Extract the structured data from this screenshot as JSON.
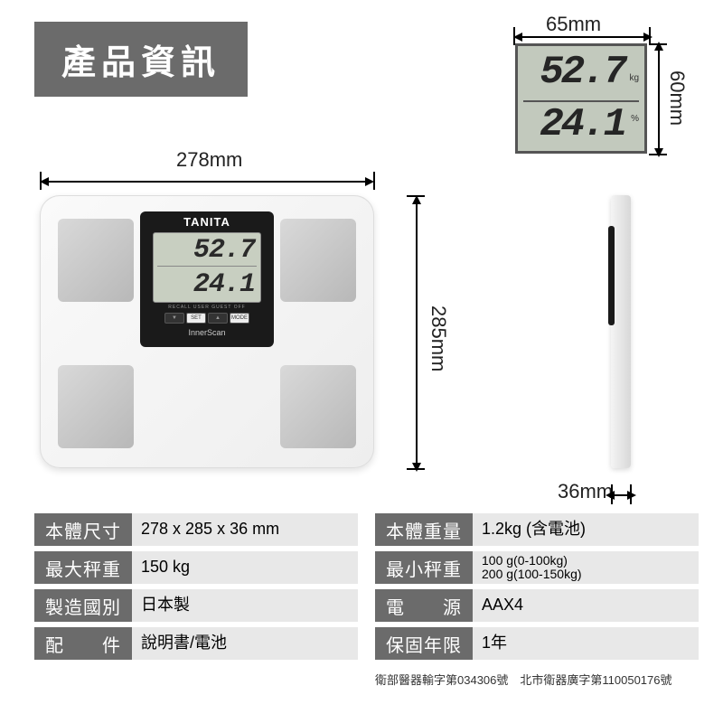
{
  "header": {
    "title": "產品資訊"
  },
  "dims": {
    "width": "278mm",
    "height": "285mm",
    "depth": "36mm",
    "lcd_w": "65mm",
    "lcd_h": "60mm"
  },
  "lcd": {
    "weight": "52.7",
    "weight_unit": "kg",
    "fat": "24.1",
    "fat_unit": "%"
  },
  "brand": "TANITA",
  "innerscan": "InnerScan",
  "specs_left": [
    {
      "label": "本體尺寸",
      "value": "278 x 285 x 36 mm"
    },
    {
      "label": "最大秤重",
      "value": "150 kg"
    },
    {
      "label": "製造國別",
      "value": "日本製"
    },
    {
      "label": "配　　件",
      "value": "說明書/電池"
    }
  ],
  "specs_right": [
    {
      "label": "本體重量",
      "value": "1.2kg (含電池)"
    },
    {
      "label": "最小秤重",
      "value": "100 g(0-100kg)\n200 g(100-150kg)"
    },
    {
      "label": "電　　源",
      "value": "AAX4"
    },
    {
      "label": "保固年限",
      "value": "1年"
    }
  ],
  "footnote": "衛部醫器輸字第034306號　北市衛器廣字第110050176號",
  "colors": {
    "gray": "#6b6b6b",
    "lcd": "#c2c9bd"
  }
}
